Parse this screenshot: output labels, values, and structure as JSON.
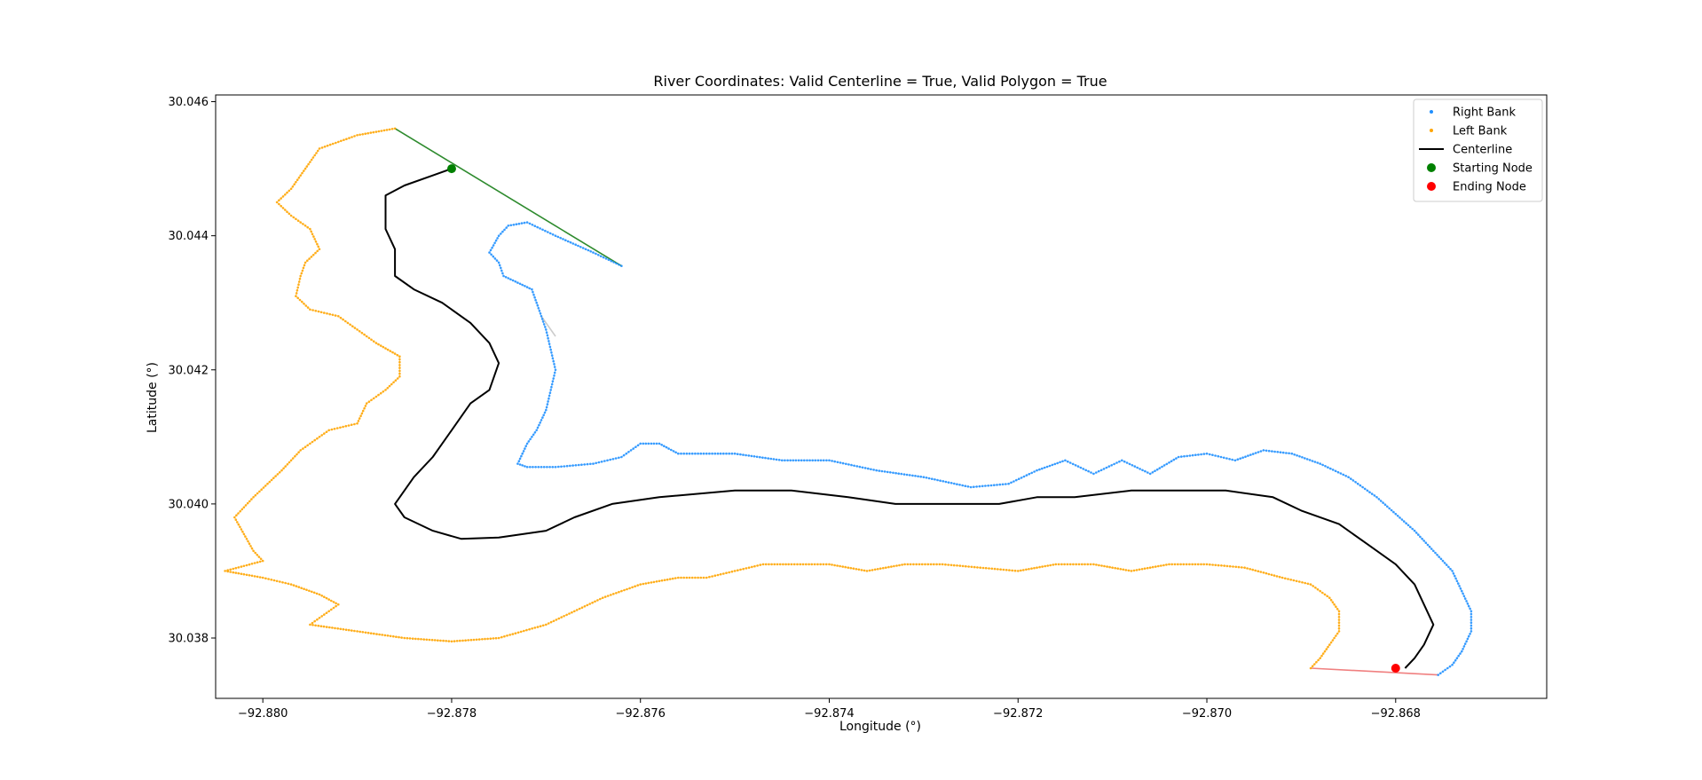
{
  "chart_data": {
    "type": "line",
    "title": "River Coordinates: Valid Centerline = True, Valid Polygon = True",
    "xlabel": "Longitude (°)",
    "ylabel": "Latitude (°)",
    "xlim": [
      -92.8805,
      -92.8664
    ],
    "ylim": [
      30.0371,
      30.0461
    ],
    "xticks": [
      -92.88,
      -92.878,
      -92.876,
      -92.874,
      -92.872,
      -92.87,
      -92.868
    ],
    "xtick_labels": [
      "−92.880",
      "−92.878",
      "−92.876",
      "−92.874",
      "−92.872",
      "−92.870",
      "−92.868"
    ],
    "yticks": [
      30.038,
      30.04,
      30.042,
      30.044,
      30.046
    ],
    "ytick_labels": [
      "30.038",
      "30.040",
      "30.042",
      "30.044",
      "30.046"
    ],
    "grid": false,
    "legend_position": "top-right",
    "legend": [
      {
        "label": "Right Bank",
        "marker": "dot",
        "color": "#1f8fff"
      },
      {
        "label": "Left Bank",
        "marker": "dot",
        "color": "#ffa500"
      },
      {
        "label": "Centerline",
        "marker": "line",
        "color": "#000000"
      },
      {
        "label": "Starting Node",
        "marker": "circle",
        "color": "#008000"
      },
      {
        "label": "Ending Node",
        "marker": "circle",
        "color": "#ff0000"
      }
    ],
    "series": [
      {
        "name": "Right Bank",
        "kind": "bank",
        "color": "#1f8fff",
        "points": [
          [
            -92.8762,
            30.04355
          ],
          [
            -92.8765,
            30.04375
          ],
          [
            -92.8769,
            30.044
          ],
          [
            -92.8772,
            30.0442
          ],
          [
            -92.8774,
            30.04415
          ],
          [
            -92.8775,
            30.044
          ],
          [
            -92.8776,
            30.04375
          ],
          [
            -92.8775,
            30.0436
          ],
          [
            -92.87745,
            30.0434
          ],
          [
            -92.8773,
            30.0433
          ],
          [
            -92.87715,
            30.0432
          ],
          [
            -92.8771,
            30.043
          ],
          [
            -92.87705,
            30.0428
          ],
          [
            -92.877,
            30.0426
          ],
          [
            -92.87695,
            30.0423
          ],
          [
            -92.8769,
            30.042
          ],
          [
            -92.87695,
            30.0417
          ],
          [
            -92.877,
            30.0414
          ],
          [
            -92.8771,
            30.0411
          ],
          [
            -92.8772,
            30.0409
          ],
          [
            -92.8773,
            30.0406
          ],
          [
            -92.8772,
            30.04055
          ],
          [
            -92.8769,
            30.04055
          ],
          [
            -92.8765,
            30.0406
          ],
          [
            -92.8762,
            30.0407
          ],
          [
            -92.876,
            30.0409
          ],
          [
            -92.8758,
            30.0409
          ],
          [
            -92.8756,
            30.04075
          ],
          [
            -92.875,
            30.04075
          ],
          [
            -92.8745,
            30.04065
          ],
          [
            -92.874,
            30.04065
          ],
          [
            -92.8735,
            30.0405
          ],
          [
            -92.873,
            30.0404
          ],
          [
            -92.8725,
            30.04025
          ],
          [
            -92.8721,
            30.0403
          ],
          [
            -92.8718,
            30.0405
          ],
          [
            -92.8715,
            30.04065
          ],
          [
            -92.8712,
            30.04045
          ],
          [
            -92.8709,
            30.04065
          ],
          [
            -92.8706,
            30.04045
          ],
          [
            -92.8703,
            30.0407
          ],
          [
            -92.87,
            30.04075
          ],
          [
            -92.8697,
            30.04065
          ],
          [
            -92.8694,
            30.0408
          ],
          [
            -92.8691,
            30.04075
          ],
          [
            -92.8688,
            30.0406
          ],
          [
            -92.8685,
            30.0404
          ],
          [
            -92.8682,
            30.0401
          ],
          [
            -92.868,
            30.03985
          ],
          [
            -92.8678,
            30.0396
          ],
          [
            -92.8676,
            30.0393
          ],
          [
            -92.8674,
            30.039
          ],
          [
            -92.8673,
            30.0387
          ],
          [
            -92.8672,
            30.0384
          ],
          [
            -92.8672,
            30.0381
          ],
          [
            -92.8673,
            30.0378
          ],
          [
            -92.8674,
            30.0376
          ],
          [
            -92.86755,
            30.03745
          ]
        ]
      },
      {
        "name": "Left Bank",
        "kind": "bank",
        "color": "#ffa500",
        "points": [
          [
            -92.8786,
            30.0456
          ],
          [
            -92.879,
            30.0455
          ],
          [
            -92.8794,
            30.0453
          ],
          [
            -92.87955,
            30.045
          ],
          [
            -92.8797,
            30.0447
          ],
          [
            -92.87985,
            30.0445
          ],
          [
            -92.8797,
            30.0443
          ],
          [
            -92.8795,
            30.0441
          ],
          [
            -92.8794,
            30.0438
          ],
          [
            -92.87955,
            30.0436
          ],
          [
            -92.8796,
            30.0434
          ],
          [
            -92.87965,
            30.0431
          ],
          [
            -92.8795,
            30.0429
          ],
          [
            -92.8792,
            30.0428
          ],
          [
            -92.879,
            30.0426
          ],
          [
            -92.8788,
            30.0424
          ],
          [
            -92.87855,
            30.0422
          ],
          [
            -92.87855,
            30.0419
          ],
          [
            -92.8787,
            30.0417
          ],
          [
            -92.8789,
            30.0415
          ],
          [
            -92.879,
            30.0412
          ],
          [
            -92.8793,
            30.0411
          ],
          [
            -92.8796,
            30.0408
          ],
          [
            -92.8798,
            30.0405
          ],
          [
            -92.8801,
            30.0401
          ],
          [
            -92.8803,
            30.0398
          ],
          [
            -92.8801,
            30.0393
          ],
          [
            -92.88,
            30.03915
          ],
          [
            -92.8804,
            30.039
          ],
          [
            -92.88,
            30.0389
          ],
          [
            -92.8797,
            30.0388
          ],
          [
            -92.8794,
            30.03865
          ],
          [
            -92.8792,
            30.0385
          ],
          [
            -92.8795,
            30.0382
          ],
          [
            -92.879,
            30.0381
          ],
          [
            -92.8785,
            30.038
          ],
          [
            -92.878,
            30.03795
          ],
          [
            -92.8775,
            30.038
          ],
          [
            -92.877,
            30.0382
          ],
          [
            -92.8767,
            30.0384
          ],
          [
            -92.8764,
            30.0386
          ],
          [
            -92.876,
            30.0388
          ],
          [
            -92.8756,
            30.0389
          ],
          [
            -92.8753,
            30.0389
          ],
          [
            -92.875,
            30.039
          ],
          [
            -92.8747,
            30.0391
          ],
          [
            -92.8744,
            30.0391
          ],
          [
            -92.874,
            30.0391
          ],
          [
            -92.8736,
            30.039
          ],
          [
            -92.8732,
            30.0391
          ],
          [
            -92.8728,
            30.0391
          ],
          [
            -92.8724,
            30.03905
          ],
          [
            -92.872,
            30.039
          ],
          [
            -92.8716,
            30.0391
          ],
          [
            -92.8712,
            30.0391
          ],
          [
            -92.8708,
            30.039
          ],
          [
            -92.8704,
            30.0391
          ],
          [
            -92.87,
            30.0391
          ],
          [
            -92.8696,
            30.03905
          ],
          [
            -92.8692,
            30.0389
          ],
          [
            -92.8689,
            30.0388
          ],
          [
            -92.8687,
            30.0386
          ],
          [
            -92.8686,
            30.0384
          ],
          [
            -92.8686,
            30.0381
          ],
          [
            -92.8687,
            30.0379
          ],
          [
            -92.8688,
            30.0377
          ],
          [
            -92.8689,
            30.03755
          ]
        ]
      },
      {
        "name": "Centerline",
        "kind": "line",
        "color": "#000000",
        "points": [
          [
            -92.878,
            30.045
          ],
          [
            -92.8782,
            30.0449
          ],
          [
            -92.8785,
            30.04475
          ],
          [
            -92.8787,
            30.0446
          ],
          [
            -92.8787,
            30.0441
          ],
          [
            -92.8786,
            30.0438
          ],
          [
            -92.8786,
            30.0434
          ],
          [
            -92.8784,
            30.0432
          ],
          [
            -92.8781,
            30.043
          ],
          [
            -92.8778,
            30.0427
          ],
          [
            -92.8776,
            30.0424
          ],
          [
            -92.8775,
            30.0421
          ],
          [
            -92.8776,
            30.0417
          ],
          [
            -92.8778,
            30.0415
          ],
          [
            -92.878,
            30.0411
          ],
          [
            -92.8782,
            30.0407
          ],
          [
            -92.8784,
            30.0404
          ],
          [
            -92.8786,
            30.04
          ],
          [
            -92.8785,
            30.0398
          ],
          [
            -92.8782,
            30.0396
          ],
          [
            -92.8779,
            30.03948
          ],
          [
            -92.8775,
            30.0395
          ],
          [
            -92.877,
            30.0396
          ],
          [
            -92.8767,
            30.0398
          ],
          [
            -92.8763,
            30.04
          ],
          [
            -92.8758,
            30.0401
          ],
          [
            -92.875,
            30.0402
          ],
          [
            -92.8744,
            30.0402
          ],
          [
            -92.8738,
            30.0401
          ],
          [
            -92.8733,
            30.04
          ],
          [
            -92.8728,
            30.04
          ],
          [
            -92.8722,
            30.04
          ],
          [
            -92.8718,
            30.0401
          ],
          [
            -92.8714,
            30.0401
          ],
          [
            -92.8708,
            30.0402
          ],
          [
            -92.8703,
            30.0402
          ],
          [
            -92.8698,
            30.0402
          ],
          [
            -92.8693,
            30.0401
          ],
          [
            -92.869,
            30.0399
          ],
          [
            -92.8686,
            30.0397
          ],
          [
            -92.8683,
            30.0394
          ],
          [
            -92.868,
            30.0391
          ],
          [
            -92.8678,
            30.0388
          ],
          [
            -92.8677,
            30.0385
          ],
          [
            -92.8676,
            30.0382
          ],
          [
            -92.8677,
            30.0379
          ],
          [
            -92.8678,
            30.0377
          ],
          [
            -92.8679,
            30.03755
          ]
        ]
      },
      {
        "name": "",
        "kind": "connector",
        "color": "#2e8b2e",
        "points": [
          [
            -92.8786,
            30.0456
          ],
          [
            -92.8762,
            30.04355
          ]
        ]
      },
      {
        "name": "",
        "kind": "connector",
        "color": "#f08080",
        "points": [
          [
            -92.8689,
            30.03755
          ],
          [
            -92.86755,
            30.03745
          ]
        ]
      },
      {
        "name": "",
        "kind": "connector",
        "color": "#cccccc",
        "points": [
          [
            -92.87705,
            30.0428
          ],
          [
            -92.8769,
            30.0425
          ]
        ]
      }
    ],
    "nodes": [
      {
        "name": "Starting Node",
        "color": "#008000",
        "x": -92.878,
        "y": 30.045
      },
      {
        "name": "Ending Node",
        "color": "#ff0000",
        "x": -92.868,
        "y": 30.03755
      }
    ]
  }
}
